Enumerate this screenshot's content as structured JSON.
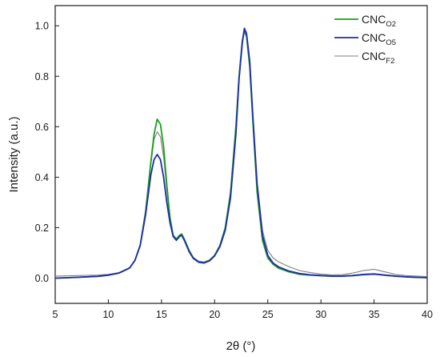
{
  "chart_data": {
    "type": "line",
    "xlabel": "2θ (°)",
    "ylabel": "Intensity (a.u.)",
    "xlim": [
      5,
      40
    ],
    "ylim": [
      -0.1,
      1.08
    ],
    "xticks": [
      5,
      10,
      15,
      20,
      25,
      30,
      35,
      40
    ],
    "yticks": [
      0.0,
      0.2,
      0.4,
      0.6,
      0.8,
      1.0
    ],
    "xtick_labels": [
      "5",
      "10",
      "15",
      "20",
      "25",
      "30",
      "35",
      "40"
    ],
    "ytick_labels": [
      "0.0",
      "0.2",
      "0.4",
      "0.6",
      "0.8",
      "1.0"
    ],
    "grid": false,
    "legend_position": "top-right",
    "series": [
      {
        "name": "CNC_O2",
        "label_main": "CNC",
        "label_sub": "O2",
        "color": "#1a9e1a",
        "x": [
          5,
          7,
          9,
          10,
          11,
          12,
          12.5,
          13,
          13.5,
          14,
          14.3,
          14.6,
          14.9,
          15.2,
          15.5,
          15.8,
          16.1,
          16.4,
          16.7,
          16.9,
          17.2,
          17.6,
          18,
          18.5,
          19,
          19.5,
          20,
          20.5,
          21,
          21.5,
          22,
          22.3,
          22.6,
          22.8,
          23,
          23.3,
          23.6,
          24,
          24.5,
          25,
          25.5,
          26,
          27,
          28,
          29,
          30,
          31,
          32,
          33,
          34,
          35,
          36,
          37,
          38,
          39,
          40
        ],
        "y": [
          0.0,
          0.003,
          0.007,
          0.012,
          0.02,
          0.04,
          0.07,
          0.13,
          0.26,
          0.46,
          0.57,
          0.63,
          0.61,
          0.52,
          0.37,
          0.24,
          0.17,
          0.155,
          0.17,
          0.175,
          0.15,
          0.11,
          0.08,
          0.065,
          0.062,
          0.07,
          0.09,
          0.13,
          0.2,
          0.34,
          0.6,
          0.8,
          0.94,
          0.985,
          0.96,
          0.84,
          0.62,
          0.34,
          0.15,
          0.08,
          0.055,
          0.04,
          0.025,
          0.015,
          0.012,
          0.01,
          0.008,
          0.008,
          0.01,
          0.015,
          0.017,
          0.012,
          0.008,
          0.005,
          0.003,
          0.002
        ]
      },
      {
        "name": "CNC_O5",
        "label_main": "CNC",
        "label_sub": "O5",
        "color": "#1f2bb0",
        "x": [
          5,
          7,
          9,
          10,
          11,
          12,
          12.5,
          13,
          13.5,
          14,
          14.3,
          14.6,
          14.9,
          15.2,
          15.5,
          15.8,
          16.1,
          16.4,
          16.7,
          16.9,
          17.2,
          17.6,
          18,
          18.5,
          19,
          19.5,
          20,
          20.5,
          21,
          21.5,
          22,
          22.3,
          22.6,
          22.8,
          23,
          23.3,
          23.6,
          24,
          24.5,
          25,
          25.5,
          26,
          27,
          28,
          29,
          30,
          31,
          32,
          33,
          34,
          35,
          36,
          37,
          38,
          39,
          40
        ],
        "y": [
          0.0,
          0.003,
          0.007,
          0.012,
          0.02,
          0.04,
          0.07,
          0.13,
          0.25,
          0.41,
          0.47,
          0.49,
          0.47,
          0.4,
          0.3,
          0.22,
          0.165,
          0.15,
          0.165,
          0.17,
          0.145,
          0.105,
          0.078,
          0.063,
          0.06,
          0.068,
          0.088,
          0.125,
          0.19,
          0.32,
          0.57,
          0.79,
          0.93,
          0.99,
          0.97,
          0.86,
          0.64,
          0.37,
          0.17,
          0.09,
          0.06,
          0.045,
          0.028,
          0.018,
          0.013,
          0.01,
          0.008,
          0.008,
          0.01,
          0.014,
          0.016,
          0.012,
          0.008,
          0.005,
          0.003,
          0.002
        ]
      },
      {
        "name": "CNC_F2",
        "label_main": "CNC",
        "label_sub": "F2",
        "color": "#808080",
        "x": [
          5,
          7,
          9,
          10,
          11,
          12,
          12.5,
          13,
          13.5,
          14,
          14.3,
          14.6,
          14.9,
          15.2,
          15.5,
          15.8,
          16.1,
          16.4,
          16.7,
          16.9,
          17.2,
          17.6,
          18,
          18.5,
          19,
          19.5,
          20,
          20.5,
          21,
          21.5,
          22,
          22.3,
          22.6,
          22.8,
          23,
          23.3,
          23.6,
          24,
          24.5,
          25,
          25.5,
          26,
          27,
          28,
          29,
          30,
          31,
          32,
          33,
          34,
          35,
          36,
          37,
          38,
          39,
          40
        ],
        "y": [
          0.008,
          0.01,
          0.012,
          0.015,
          0.022,
          0.042,
          0.072,
          0.135,
          0.27,
          0.45,
          0.55,
          0.58,
          0.56,
          0.48,
          0.35,
          0.235,
          0.17,
          0.155,
          0.168,
          0.172,
          0.148,
          0.108,
          0.082,
          0.067,
          0.064,
          0.072,
          0.092,
          0.13,
          0.2,
          0.34,
          0.59,
          0.8,
          0.935,
          0.975,
          0.955,
          0.85,
          0.64,
          0.38,
          0.19,
          0.11,
          0.08,
          0.065,
          0.045,
          0.03,
          0.022,
          0.016,
          0.013,
          0.014,
          0.02,
          0.03,
          0.035,
          0.025,
          0.015,
          0.01,
          0.008,
          0.006
        ]
      }
    ]
  }
}
